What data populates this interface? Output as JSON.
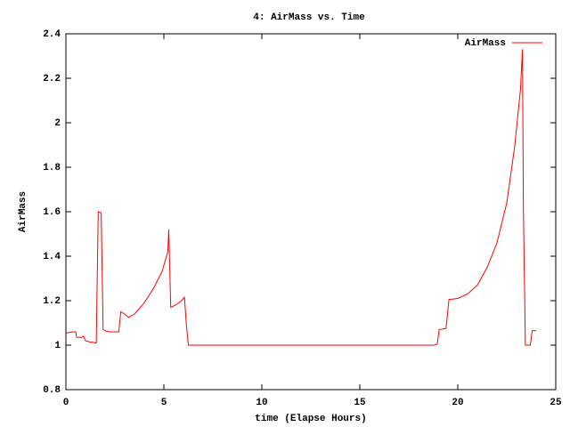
{
  "chart_data": {
    "type": "line",
    "title": "4: AirMass vs. Time",
    "x_label": "time (Elapse Hours)",
    "y_label": "AirMass",
    "x": [
      0,
      0.4,
      0.5,
      0.55,
      0.8,
      0.9,
      1.0,
      1.2,
      1.55,
      1.65,
      1.8,
      1.9,
      2.0,
      2.2,
      2.7,
      2.8,
      3.0,
      3.2,
      3.5,
      4.0,
      4.5,
      4.9,
      5.2,
      5.25,
      5.35,
      5.6,
      5.9,
      6.05,
      6.15,
      6.25,
      18.8,
      18.95,
      19.05,
      19.4,
      19.55,
      20.0,
      20.5,
      21.0,
      21.5,
      22.0,
      22.5,
      22.9,
      23.2,
      23.3,
      23.35,
      23.45,
      23.7,
      23.8,
      24.0
    ],
    "series": [
      {
        "name": "AirMass",
        "color": "#ff0000",
        "values": [
          1.055,
          1.06,
          1.06,
          1.035,
          1.035,
          1.04,
          1.02,
          1.015,
          1.01,
          1.6,
          1.595,
          1.07,
          1.065,
          1.06,
          1.06,
          1.15,
          1.14,
          1.125,
          1.14,
          1.19,
          1.26,
          1.33,
          1.42,
          1.52,
          1.17,
          1.18,
          1.2,
          1.215,
          1.09,
          1.0,
          1.0,
          1.005,
          1.07,
          1.075,
          1.205,
          1.21,
          1.23,
          1.27,
          1.35,
          1.46,
          1.64,
          1.89,
          2.15,
          2.33,
          1.6,
          1.0,
          1.0,
          1.065,
          1.065
        ]
      }
    ],
    "xlim": [
      0,
      25
    ],
    "xticks": [
      0,
      5,
      10,
      15,
      20,
      25
    ],
    "ylim": [
      0.8,
      2.4
    ],
    "yticks": [
      0.8,
      1,
      1.2,
      1.4,
      1.6,
      1.8,
      2,
      2.2,
      2.4
    ],
    "grid": false,
    "legend": "top-right"
  }
}
